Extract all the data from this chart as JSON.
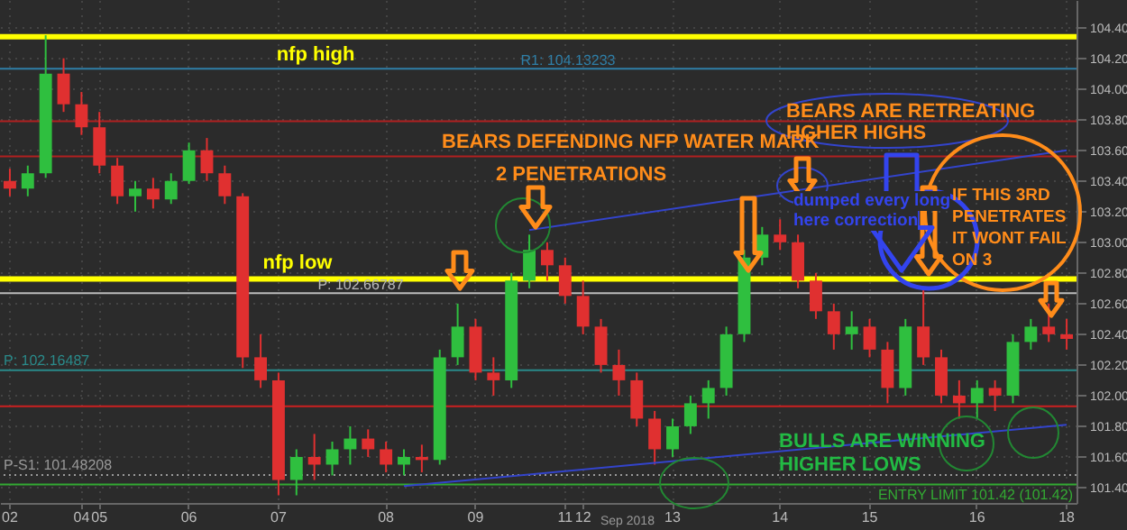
{
  "chart_data": {
    "type": "candlestick",
    "categories": [
      "02",
      null,
      null,
      null,
      "04",
      "05",
      null,
      null,
      null,
      null,
      "06",
      null,
      null,
      null,
      null,
      "07",
      null,
      null,
      null,
      null,
      null,
      "08",
      null,
      null,
      null,
      null,
      "09",
      null,
      null,
      null,
      null,
      "11",
      "12",
      null,
      null,
      null,
      null,
      "13",
      null,
      null,
      null,
      null,
      null,
      "14",
      null,
      null,
      null,
      null,
      "15",
      null,
      null,
      null,
      null,
      null,
      "16",
      null,
      null,
      null,
      null,
      "18"
    ],
    "ohlc": [
      [
        103.4,
        103.48,
        103.3,
        103.35
      ],
      [
        103.35,
        103.5,
        103.3,
        103.45
      ],
      [
        103.45,
        104.35,
        103.42,
        104.1
      ],
      [
        104.1,
        104.2,
        103.85,
        103.9
      ],
      [
        103.9,
        103.98,
        103.7,
        103.75
      ],
      [
        103.75,
        103.85,
        103.45,
        103.5
      ],
      [
        103.5,
        103.55,
        103.25,
        103.3
      ],
      [
        103.3,
        103.4,
        103.2,
        103.35
      ],
      [
        103.35,
        103.42,
        103.22,
        103.28
      ],
      [
        103.28,
        103.45,
        103.25,
        103.4
      ],
      [
        103.4,
        103.65,
        103.38,
        103.6
      ],
      [
        103.6,
        103.68,
        103.4,
        103.45
      ],
      [
        103.45,
        103.5,
        103.25,
        103.3
      ],
      [
        103.3,
        103.32,
        102.18,
        102.25
      ],
      [
        102.25,
        102.4,
        102.05,
        102.1
      ],
      [
        102.1,
        102.15,
        101.35,
        101.45
      ],
      [
        101.45,
        101.65,
        101.35,
        101.6
      ],
      [
        101.6,
        101.75,
        101.45,
        101.55
      ],
      [
        101.55,
        101.7,
        101.48,
        101.65
      ],
      [
        101.65,
        101.8,
        101.55,
        101.72
      ],
      [
        101.72,
        101.78,
        101.6,
        101.65
      ],
      [
        101.65,
        101.7,
        101.5,
        101.55
      ],
      [
        101.55,
        101.65,
        101.48,
        101.6
      ],
      [
        101.6,
        101.68,
        101.5,
        101.58
      ],
      [
        101.58,
        102.3,
        101.55,
        102.25
      ],
      [
        102.25,
        102.6,
        102.2,
        102.45
      ],
      [
        102.45,
        102.5,
        102.1,
        102.15
      ],
      [
        102.15,
        102.25,
        102.0,
        102.1
      ],
      [
        102.1,
        102.8,
        102.05,
        102.75
      ],
      [
        102.75,
        103.05,
        102.7,
        102.95
      ],
      [
        102.95,
        103.0,
        102.75,
        102.85
      ],
      [
        102.85,
        102.9,
        102.6,
        102.65
      ],
      [
        102.65,
        102.75,
        102.4,
        102.45
      ],
      [
        102.45,
        102.5,
        102.15,
        102.2
      ],
      [
        102.2,
        102.3,
        102.0,
        102.1
      ],
      [
        102.1,
        102.15,
        101.8,
        101.85
      ],
      [
        101.85,
        101.9,
        101.55,
        101.65
      ],
      [
        101.65,
        101.85,
        101.6,
        101.8
      ],
      [
        101.8,
        102.0,
        101.75,
        101.95
      ],
      [
        101.95,
        102.1,
        101.85,
        102.05
      ],
      [
        102.05,
        102.45,
        102.0,
        102.4
      ],
      [
        102.4,
        102.95,
        102.35,
        102.9
      ],
      [
        102.9,
        103.1,
        102.85,
        103.05
      ],
      [
        103.05,
        103.15,
        102.95,
        103.0
      ],
      [
        103.0,
        103.05,
        102.7,
        102.75
      ],
      [
        102.75,
        102.8,
        102.5,
        102.55
      ],
      [
        102.55,
        102.6,
        102.3,
        102.4
      ],
      [
        102.4,
        102.55,
        102.3,
        102.45
      ],
      [
        102.45,
        102.5,
        102.25,
        102.3
      ],
      [
        102.3,
        102.35,
        101.95,
        102.05
      ],
      [
        102.05,
        102.5,
        102.0,
        102.45
      ],
      [
        102.45,
        102.7,
        102.2,
        102.25
      ],
      [
        102.25,
        102.3,
        101.95,
        102.0
      ],
      [
        102.0,
        102.1,
        101.85,
        101.95
      ],
      [
        101.95,
        102.1,
        101.85,
        102.05
      ],
      [
        102.05,
        102.1,
        101.9,
        102.0
      ],
      [
        102.0,
        102.4,
        101.95,
        102.35
      ],
      [
        102.35,
        102.5,
        102.3,
        102.45
      ],
      [
        102.45,
        102.6,
        102.35,
        102.4
      ],
      [
        102.4,
        102.5,
        102.3,
        102.37
      ]
    ],
    "series": [
      {
        "type": "line",
        "color": "#3344cc",
        "values": [
          null,
          null,
          null,
          null,
          null,
          null,
          null,
          null,
          null,
          null,
          null,
          null,
          null,
          null,
          null,
          null,
          null,
          null,
          null,
          null,
          null,
          null,
          null,
          null,
          null,
          null,
          null,
          null,
          null,
          103.08,
          null,
          null,
          null,
          null,
          null,
          null,
          null,
          null,
          null,
          null,
          null,
          null,
          null,
          null,
          null,
          null,
          null,
          null,
          null,
          null,
          null,
          null,
          null,
          null,
          null,
          null,
          null,
          null,
          null,
          103.6
        ]
      },
      {
        "type": "line",
        "color": "#3344cc",
        "values": [
          null,
          null,
          null,
          null,
          null,
          null,
          null,
          null,
          null,
          null,
          null,
          null,
          null,
          null,
          null,
          null,
          null,
          null,
          null,
          null,
          null,
          null,
          101.41,
          null,
          null,
          null,
          null,
          null,
          null,
          null,
          null,
          null,
          null,
          null,
          null,
          null,
          null,
          null,
          null,
          null,
          null,
          null,
          null,
          null,
          null,
          null,
          null,
          null,
          null,
          null,
          null,
          null,
          null,
          null,
          null,
          null,
          null,
          null,
          null,
          101.81
        ]
      }
    ],
    "ylim": [
      101.3,
      104.58
    ],
    "yticks": [
      {
        "value": 101.4,
        "label": "101.40"
      },
      {
        "value": 101.6,
        "label": "101.60"
      },
      {
        "value": 101.8,
        "label": "101.80"
      },
      {
        "value": 102.0,
        "label": "102.00"
      },
      {
        "value": 102.2,
        "label": "102.20"
      },
      {
        "value": 102.4,
        "label": "102.40"
      },
      {
        "value": 102.6,
        "label": "102.60"
      },
      {
        "value": 102.8,
        "label": "102.80"
      },
      {
        "value": 103.0,
        "label": "103.00"
      },
      {
        "value": 103.2,
        "label": "103.20"
      },
      {
        "value": 103.4,
        "label": "103.40"
      },
      {
        "value": 103.6,
        "label": "103.60"
      },
      {
        "value": 103.8,
        "label": "103.80"
      },
      {
        "value": 104.0,
        "label": "104.00"
      },
      {
        "value": 104.2,
        "label": "104.20"
      },
      {
        "value": 104.4,
        "label": "104.40"
      }
    ],
    "grid": true,
    "ref_lines": [
      {
        "axis": "y",
        "value": 104.34,
        "label": "nfp high",
        "color": "#ffff00"
      },
      {
        "axis": "y",
        "value": 102.76,
        "label": "nfp low",
        "color": "#ffff00"
      },
      {
        "axis": "y",
        "value": 104.13233,
        "label": "R1: 104.13233",
        "color": "#2f7fa8"
      },
      {
        "axis": "y",
        "value": 102.66787,
        "label": "P: 102.66787",
        "color": "#bbbbbb"
      },
      {
        "axis": "y",
        "value": 102.16487,
        "label": "P: 102.16487",
        "color": "#2a8a8a"
      },
      {
        "axis": "y",
        "value": 101.48208,
        "label": "P-S1: 101.48208",
        "color": "#999999",
        "line_style": "dotted"
      },
      {
        "axis": "y",
        "value": 101.42,
        "label": "ENTRY LIMIT 101.42 (101.42)",
        "color": "#33aa33"
      },
      {
        "axis": "y",
        "value": 103.79,
        "color": "#b02020"
      },
      {
        "axis": "y",
        "value": 103.56,
        "color": "#b02020"
      },
      {
        "axis": "y",
        "value": 101.93,
        "color": "#cc2020"
      }
    ],
    "annotations": [
      "BEARS DEFENDING NFP WATER MARK",
      "2 PENETRATIONS",
      "BEARS ARE RETREATING",
      "HGHER HIGHS",
      "dumped every long",
      "here correction",
      "IF THIS 3RD",
      "PENETRATES",
      "IT WONT FAIL",
      "ON 3",
      "BULLS ARE WINNING",
      "HIGHER LOWS",
      "Sep 2018"
    ]
  }
}
